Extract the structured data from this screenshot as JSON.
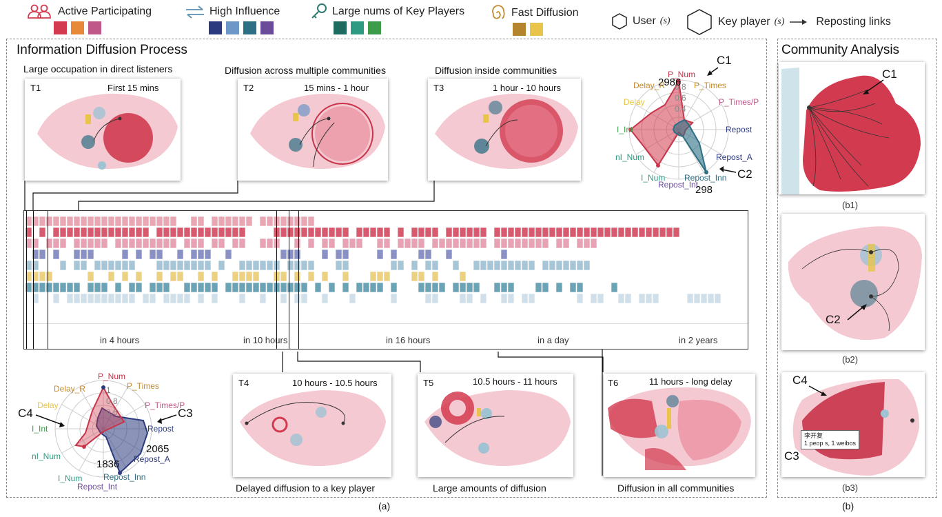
{
  "legend": {
    "active": {
      "label": "Active Participating",
      "colors": [
        "#d33a4f",
        "#e8893a",
        "#c0588a"
      ]
    },
    "influence": {
      "label": "High Influence",
      "colors": [
        "#2b3a7e",
        "#6d97c8",
        "#2d6f84",
        "#6b4c9a"
      ]
    },
    "keyplayers": {
      "label": "Large nums of Key Players",
      "colors": [
        "#1f6b62",
        "#2f9a82",
        "#3c9c4a"
      ]
    },
    "diffusion": {
      "label": "Fast Diffusion",
      "colors": [
        "#b5852e",
        "#e8c54a"
      ]
    },
    "user": {
      "label": "User",
      "suffix": "(s)"
    },
    "keyplayer": {
      "label": "Key player",
      "suffix": "(s)"
    },
    "reposting": {
      "label": "Reposting links"
    }
  },
  "panels": {
    "diffusion_title": "Information Diffusion Process",
    "community_title": "Community Analysis",
    "caption_a": "(a)",
    "caption_b": "(b)"
  },
  "snapshots": {
    "t1": {
      "label": "T1",
      "time": "First 15 mins",
      "caption": "Large occupation in direct listeners"
    },
    "t2": {
      "label": "T2",
      "time": "15 mins - 1 hour",
      "caption": "Diffusion across multiple communities"
    },
    "t3": {
      "label": "T3",
      "time": "1 hour - 10 hours",
      "caption": "Diffusion inside  communities"
    },
    "t4": {
      "label": "T4",
      "time": "10 hours - 10.5 hours",
      "caption": "Delayed diffusion to a key player"
    },
    "t5": {
      "label": "T5",
      "time": "10.5 hours - 11 hours",
      "caption": "Large amounts of diffusion"
    },
    "t6": {
      "label": "T6",
      "time": "11 hours - long delay",
      "caption": "Diffusion in all communities"
    }
  },
  "timeline": {
    "ticks": [
      "in 4 hours",
      "in 10 hours",
      "in 16 hours",
      "in a day",
      "in 2 years"
    ]
  },
  "radar_top": {
    "axes": [
      "P_Num",
      "P_Times",
      "P_Times/P",
      "Repost",
      "Repost_A",
      "Repost_Inn",
      "Repost_Int",
      "I_Num",
      "nI_Num",
      "I_Int",
      "Delay",
      "Delay_R"
    ],
    "rings": [
      "0.8",
      "0.6",
      "0.4"
    ],
    "value_top": "2986",
    "value_bottom": "298",
    "callout_1": "C1",
    "callout_2": "C2"
  },
  "radar_bottom": {
    "axes": [
      "P_Num",
      "P_Times",
      "P_Times/P",
      "Repost",
      "Repost_A",
      "Repost_Inn",
      "Repost_Int",
      "I_Num",
      "nI_Num",
      "I_Int",
      "Delay",
      "Delay_R"
    ],
    "rings": [
      "1",
      "0.8",
      "0.6"
    ],
    "value_right": "2065",
    "value_bottom": "1836",
    "callout_1": "C4",
    "callout_2": "C3"
  },
  "community": {
    "b1": {
      "caption": "(b1)",
      "callout": "C1"
    },
    "b2": {
      "caption": "(b2)",
      "callout": "C2"
    },
    "b3": {
      "caption": "(b3)",
      "callout_top": "C4",
      "callout_bottom": "C3",
      "tooltip_line1": "李开复",
      "tooltip_line2": "1 peop s, 1 weibos"
    }
  }
}
